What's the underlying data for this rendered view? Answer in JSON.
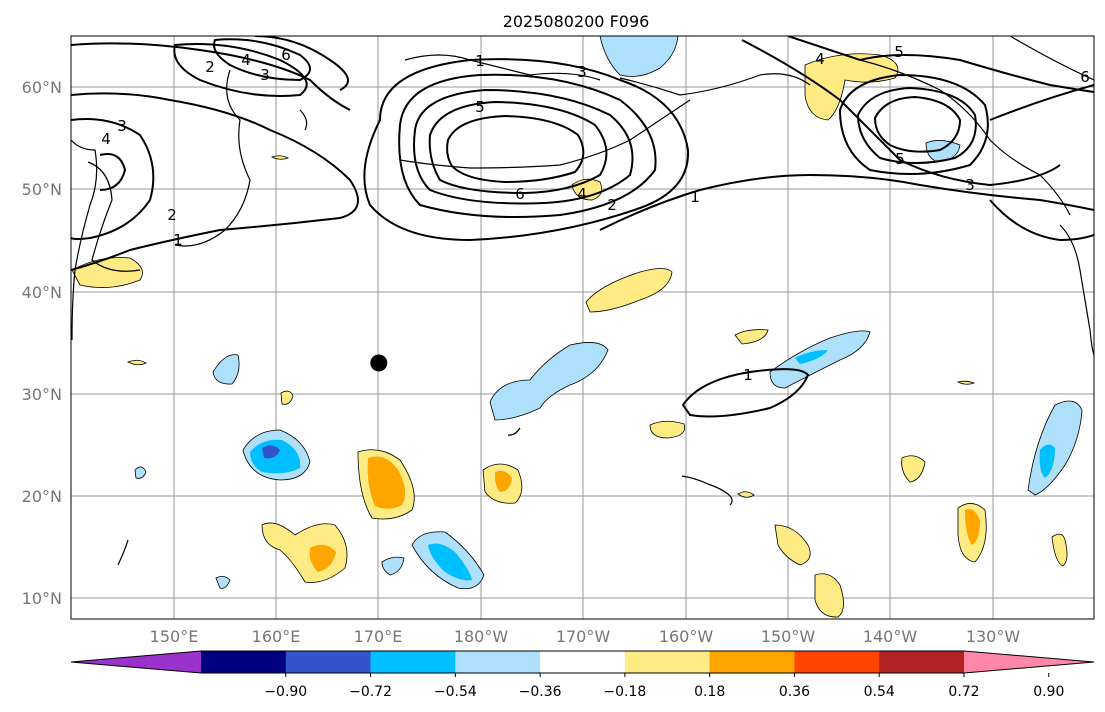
{
  "title": "2025080200 F096",
  "lat_labels": [
    "60°N",
    "50°N",
    "40°N",
    "30°N",
    "20°N",
    "10°N"
  ],
  "lon_labels": [
    "150°E",
    "160°E",
    "170°E",
    "180°W",
    "170°W",
    "160°W",
    "150°W",
    "140°W",
    "130°W"
  ],
  "colorbar": {
    "colors": [
      "#9933cc",
      "#000080",
      "#3355cc",
      "#00bfff",
      "#aee0fb",
      "#ffffff",
      "#ffeb84",
      "#ffa500",
      "#ff4500",
      "#b22222",
      "#ff88aa"
    ],
    "tick_labels": [
      "−0.90",
      "−0.72",
      "−0.54",
      "−0.36",
      "−0.18",
      "0.18",
      "0.36",
      "0.54",
      "0.72",
      "0.90"
    ]
  },
  "contour_labels": [
    "6",
    "2",
    "4",
    "3",
    "1",
    "3",
    "5",
    "6",
    "4",
    "2",
    "1",
    "5",
    "4",
    "6",
    "5",
    "3",
    "4",
    "3",
    "2",
    "1",
    "1"
  ],
  "marker": {
    "lon": 170,
    "lat": 33,
    "color": "#000000"
  }
}
